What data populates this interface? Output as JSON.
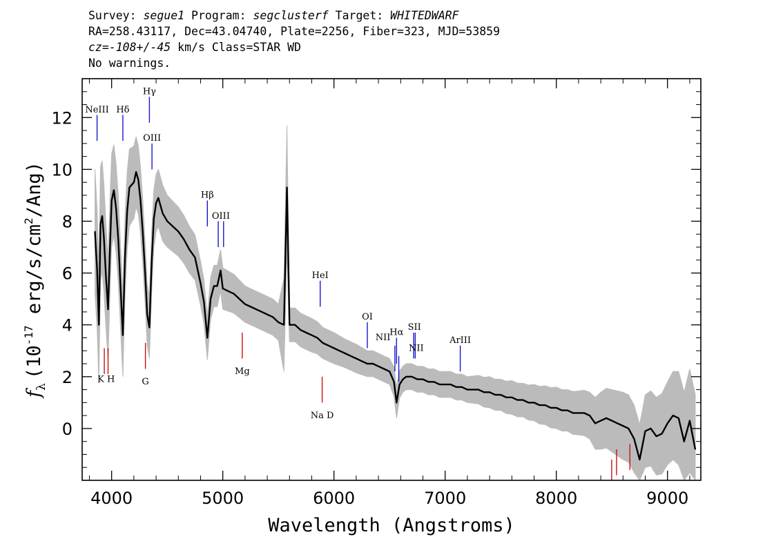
{
  "header": {
    "survey_label": "Survey:",
    "survey": "segue1",
    "program_label": "Program:",
    "program": "segclusterf",
    "target_label": "Target:",
    "target": "WHITEDWARF",
    "coords": "RA=258.43117, Dec=43.04740, Plate=2256, Fiber=323, MJD=53859",
    "cz_label": "cz=",
    "cz_value": "-108+/-45",
    "cz_rest": "km/s Class=STAR WD",
    "warnings": "No warnings."
  },
  "chart_data": {
    "type": "line",
    "title": "",
    "xlabel": "Wavelength (Angstroms)",
    "ylabel": "f_λ (10^-17 erg/s/cm^2/Ang)",
    "ylabel_parts": {
      "prefix": "(10",
      "exp1": "-17",
      "mid": " erg/s/cm",
      "exp2": "2",
      "suffix": "/Ang)"
    },
    "xlim": [
      3735,
      9300
    ],
    "ylim": [
      -2,
      13.5
    ],
    "xticks": [
      4000,
      5000,
      6000,
      7000,
      8000,
      9000
    ],
    "yticks": [
      0,
      2,
      4,
      6,
      8,
      10,
      12
    ],
    "grid": false,
    "series": [
      {
        "role": "flux",
        "color": "#000000",
        "x": [
          3850,
          3870,
          3885,
          3900,
          3915,
          3930,
          3950,
          3968,
          3985,
          4000,
          4020,
          4040,
          4060,
          4080,
          4101,
          4120,
          4140,
          4160,
          4180,
          4200,
          4220,
          4240,
          4260,
          4280,
          4300,
          4320,
          4340,
          4360,
          4380,
          4400,
          4420,
          4440,
          4460,
          4500,
          4550,
          4600,
          4650,
          4700,
          4750,
          4800,
          4830,
          4861,
          4890,
          4920,
          4950,
          4980,
          5000,
          5050,
          5100,
          5150,
          5200,
          5250,
          5300,
          5350,
          5400,
          5450,
          5500,
          5550,
          5577,
          5600,
          5650,
          5700,
          5750,
          5800,
          5850,
          5900,
          5950,
          6000,
          6050,
          6100,
          6150,
          6200,
          6250,
          6300,
          6350,
          6400,
          6450,
          6500,
          6540,
          6563,
          6590,
          6620,
          6650,
          6700,
          6750,
          6800,
          6850,
          6900,
          6950,
          7000,
          7050,
          7100,
          7150,
          7200,
          7250,
          7300,
          7350,
          7400,
          7450,
          7500,
          7550,
          7600,
          7650,
          7700,
          7750,
          7800,
          7850,
          7900,
          7950,
          8000,
          8050,
          8100,
          8150,
          8200,
          8250,
          8300,
          8350,
          8400,
          8450,
          8500,
          8550,
          8600,
          8650,
          8700,
          8750,
          8800,
          8850,
          8900,
          8950,
          9000,
          9050,
          9100,
          9150,
          9200,
          9250
        ],
        "y": [
          7.6,
          6.1,
          4.0,
          7.9,
          8.2,
          7.4,
          5.8,
          4.6,
          7.0,
          8.8,
          9.2,
          8.5,
          7.3,
          5.5,
          3.6,
          6.6,
          8.4,
          9.3,
          9.4,
          9.5,
          9.9,
          9.6,
          8.8,
          7.6,
          6.1,
          4.4,
          3.9,
          6.4,
          8.1,
          8.7,
          8.9,
          8.6,
          8.3,
          8.0,
          7.8,
          7.6,
          7.3,
          6.9,
          6.6,
          5.6,
          4.9,
          3.5,
          5.0,
          5.5,
          5.5,
          6.1,
          5.4,
          5.3,
          5.2,
          5.0,
          4.8,
          4.7,
          4.6,
          4.5,
          4.4,
          4.3,
          4.1,
          4.0,
          9.3,
          4.0,
          4.0,
          3.8,
          3.7,
          3.6,
          3.5,
          3.3,
          3.2,
          3.1,
          3.0,
          2.9,
          2.8,
          2.7,
          2.6,
          2.5,
          2.5,
          2.4,
          2.3,
          2.2,
          1.8,
          1.0,
          1.7,
          1.9,
          2.0,
          2.0,
          1.9,
          1.9,
          1.8,
          1.8,
          1.7,
          1.7,
          1.7,
          1.6,
          1.6,
          1.5,
          1.5,
          1.5,
          1.4,
          1.4,
          1.3,
          1.3,
          1.2,
          1.2,
          1.1,
          1.1,
          1.0,
          1.0,
          0.9,
          0.9,
          0.8,
          0.8,
          0.7,
          0.7,
          0.6,
          0.6,
          0.6,
          0.5,
          0.2,
          0.3,
          0.4,
          0.3,
          0.2,
          0.1,
          0.0,
          -0.4,
          -1.2,
          -0.1,
          0.0,
          -0.3,
          -0.2,
          0.2,
          0.5,
          0.4,
          -0.5,
          0.3,
          -0.8
        ]
      },
      {
        "role": "error",
        "color": "#bbbbbb",
        "x": [
          3850,
          3900,
          3950,
          4000,
          4050,
          4100,
          4150,
          4200,
          4250,
          4300,
          4350,
          4400,
          4450,
          4500,
          4600,
          4700,
          4800,
          4861,
          4900,
          4950,
          5000,
          5100,
          5200,
          5300,
          5400,
          5500,
          5577,
          5600,
          5700,
          5800,
          5900,
          6000,
          6100,
          6200,
          6300,
          6400,
          6500,
          6563,
          6600,
          6700,
          6800,
          6900,
          7000,
          7100,
          7200,
          7300,
          7400,
          7500,
          7600,
          7700,
          7800,
          7900,
          8000,
          8100,
          8200,
          8300,
          8400,
          8500,
          8600,
          8700,
          8800,
          8900,
          9000,
          9100,
          9200,
          9250
        ],
        "y": [
          2.4,
          2.2,
          2.0,
          1.8,
          1.7,
          1.6,
          1.5,
          1.4,
          1.3,
          1.2,
          1.2,
          1.1,
          1.1,
          1.0,
          0.95,
          0.9,
          0.85,
          0.85,
          0.8,
          0.8,
          0.8,
          0.75,
          0.7,
          0.7,
          0.7,
          0.7,
          2.4,
          0.65,
          0.65,
          0.65,
          0.6,
          0.6,
          0.55,
          0.55,
          0.5,
          0.5,
          0.5,
          0.6,
          0.5,
          0.5,
          0.5,
          0.5,
          0.5,
          0.5,
          0.5,
          0.55,
          0.6,
          0.6,
          0.65,
          0.65,
          0.7,
          0.75,
          0.8,
          0.8,
          0.85,
          0.9,
          1.1,
          1.2,
          1.3,
          1.3,
          1.4,
          1.5,
          1.6,
          1.8,
          2.0,
          2.1
        ]
      }
    ],
    "lines": [
      {
        "label": "NeIII",
        "x": 3869,
        "type": "emission",
        "color": "#1515d0",
        "y0": 11.1,
        "y1": 12.1
      },
      {
        "label": "Hδ",
        "x": 4101,
        "type": "emission",
        "color": "#1515d0",
        "y0": 11.1,
        "y1": 12.1
      },
      {
        "label": "Hγ",
        "x": 4340,
        "type": "emission",
        "color": "#1515d0",
        "y0": 11.8,
        "y1": 12.8
      },
      {
        "label": "OIII",
        "x": 4363,
        "type": "emission",
        "color": "#1515d0",
        "y0": 10.0,
        "y1": 11.0
      },
      {
        "label": "Hβ",
        "x": 4861,
        "type": "emission",
        "color": "#1515d0",
        "y0": 7.8,
        "y1": 8.8
      },
      {
        "label": "OIII",
        "x": 4959,
        "type": "emission",
        "color": "#1515d0",
        "y0": 7.0,
        "y1": 8.0
      },
      {
        "label": "",
        "x": 5007,
        "type": "emission",
        "color": "#1515d0",
        "y0": 7.0,
        "y1": 8.0
      },
      {
        "label": "HeI",
        "x": 5876,
        "type": "emission",
        "color": "#1515d0",
        "y0": 4.7,
        "y1": 5.7
      },
      {
        "label": "OI",
        "x": 6300,
        "type": "emission",
        "color": "#1515d0",
        "y0": 3.1,
        "y1": 4.1
      },
      {
        "label": "NII",
        "x": 6548,
        "type": "emission",
        "color": "#1515d0",
        "y0": 2.2,
        "y1": 3.2
      },
      {
        "label": "Hα",
        "x": 6563,
        "type": "emission",
        "color": "#1515d0",
        "y0": 2.5,
        "y1": 3.5
      },
      {
        "label": "",
        "x": 6583,
        "type": "emission",
        "color": "#1515d0",
        "y0": 1.8,
        "y1": 2.8
      },
      {
        "label": "SII",
        "x": 6717,
        "type": "emission",
        "color": "#1515d0",
        "y0": 2.7,
        "y1": 3.7
      },
      {
        "label": "NII",
        "x": 6731,
        "type": "emission",
        "color": "#1515d0",
        "y0": 2.7,
        "y1": 3.7
      },
      {
        "label": "ArIII",
        "x": 7136,
        "type": "emission",
        "color": "#1515d0",
        "y0": 2.2,
        "y1": 3.2
      },
      {
        "label": "K",
        "x": 3934,
        "type": "absorption",
        "color": "#c81010",
        "y0": 2.1,
        "y1": 3.1
      },
      {
        "label": "H",
        "x": 3968,
        "type": "absorption",
        "color": "#c81010",
        "y0": 2.1,
        "y1": 3.1
      },
      {
        "label": "G",
        "x": 4304,
        "type": "absorption",
        "color": "#c81010",
        "y0": 2.3,
        "y1": 3.3
      },
      {
        "label": "Mg",
        "x": 5175,
        "type": "absorption",
        "color": "#c81010",
        "y0": 2.7,
        "y1": 3.7
      },
      {
        "label": "Na D",
        "x": 5894,
        "type": "absorption",
        "color": "#c81010",
        "y0": 1.0,
        "y1": 2.0
      },
      {
        "label": "",
        "x": 8498,
        "type": "absorption",
        "color": "#c81010",
        "y0": -2.0,
        "y1": -1.2
      },
      {
        "label": "",
        "x": 8542,
        "type": "absorption",
        "color": "#c81010",
        "y0": -1.8,
        "y1": -0.8
      },
      {
        "label": "",
        "x": 8662,
        "type": "absorption",
        "color": "#c81010",
        "y0": -1.6,
        "y1": -0.6
      }
    ],
    "line_labels": [
      {
        "text": "NeIII",
        "x": 3869,
        "y": 12.2
      },
      {
        "text": "Hδ",
        "x": 4101,
        "y": 12.2
      },
      {
        "text": "Hγ",
        "x": 4340,
        "y": 12.9
      },
      {
        "text": "OIII",
        "x": 4363,
        "y": 11.1
      },
      {
        "text": "Hβ",
        "x": 4861,
        "y": 8.9
      },
      {
        "text": "OIII",
        "x": 4983,
        "y": 8.1
      },
      {
        "text": "HeI",
        "x": 5876,
        "y": 5.8
      },
      {
        "text": "OI",
        "x": 6300,
        "y": 4.2
      },
      {
        "text": "NII",
        "x": 6440,
        "y": 3.4
      },
      {
        "text": "Hα",
        "x": 6563,
        "y": 3.6
      },
      {
        "text": "SII",
        "x": 6724,
        "y": 3.8
      },
      {
        "text": "NII",
        "x": 6740,
        "y": 3.0
      },
      {
        "text": "ArIII",
        "x": 7136,
        "y": 3.3
      },
      {
        "text": "K H",
        "x": 3951,
        "y": 1.8
      },
      {
        "text": "G",
        "x": 4304,
        "y": 1.7
      },
      {
        "text": "Mg",
        "x": 5175,
        "y": 2.1
      },
      {
        "text": "Na D",
        "x": 5894,
        "y": 0.4
      }
    ]
  }
}
